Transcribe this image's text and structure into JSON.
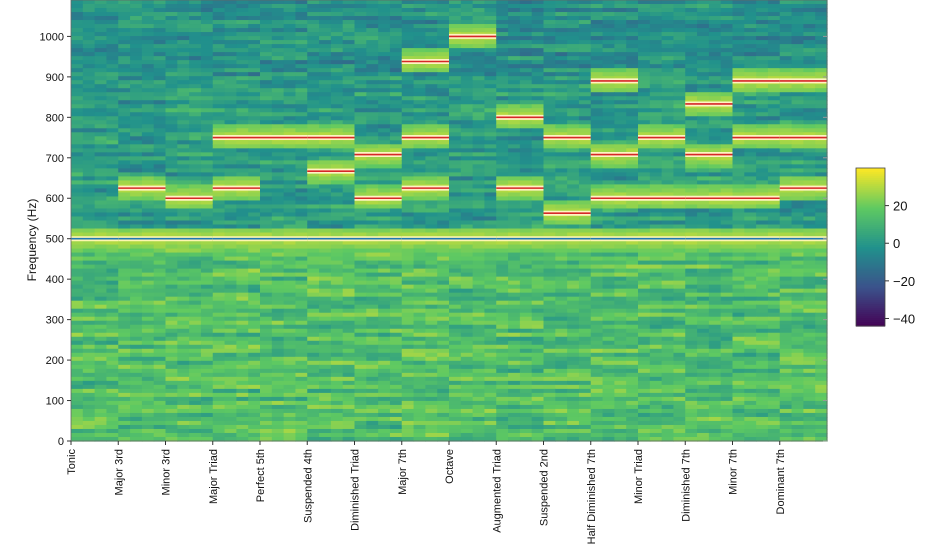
{
  "chart_data": {
    "type": "heatmap",
    "title": "",
    "xlabel": "",
    "ylabel": "Frequency (Hz)",
    "ylim": [
      0,
      1090
    ],
    "yticks": [
      0,
      100,
      200,
      300,
      400,
      500,
      600,
      700,
      800,
      900,
      1000
    ],
    "categories": [
      "Tonic",
      "Major 3rd",
      "Minor 3rd",
      "Major Triad",
      "Perfect 5th",
      "Suspended 4th",
      "Diminished Triad",
      "Major 7th",
      "Octave",
      "Augmented Triad",
      "Suspended 2nd",
      "Half Diminished 7th",
      "Minor Triad",
      "Diminished 7th",
      "Minor 7th",
      "Dominant 7th"
    ],
    "tonic_hz": 500,
    "segments": [
      {
        "name": "Tonic",
        "tones": [
          500
        ]
      },
      {
        "name": "Major 3rd",
        "tones": [
          500,
          625
        ]
      },
      {
        "name": "Minor 3rd",
        "tones": [
          500,
          600
        ]
      },
      {
        "name": "Major Triad",
        "tones": [
          500,
          625,
          750
        ]
      },
      {
        "name": "Perfect 5th",
        "tones": [
          500,
          750
        ]
      },
      {
        "name": "Suspended 4th",
        "tones": [
          500,
          667,
          750
        ]
      },
      {
        "name": "Diminished Triad",
        "tones": [
          500,
          600,
          708
        ]
      },
      {
        "name": "Major 7th",
        "tones": [
          500,
          625,
          750,
          938
        ]
      },
      {
        "name": "Octave",
        "tones": [
          500,
          1000
        ]
      },
      {
        "name": "Augmented Triad",
        "tones": [
          500,
          625,
          800
        ]
      },
      {
        "name": "Suspended 2nd",
        "tones": [
          500,
          563,
          750
        ]
      },
      {
        "name": "Half Diminished 7th",
        "tones": [
          500,
          600,
          708,
          890
        ]
      },
      {
        "name": "Minor Triad",
        "tones": [
          500,
          600,
          750
        ]
      },
      {
        "name": "Diminished 7th",
        "tones": [
          500,
          600,
          708,
          833
        ]
      },
      {
        "name": "Minor 7th",
        "tones": [
          500,
          600,
          750,
          890
        ]
      },
      {
        "name": "Dominant 7th",
        "tones": [
          500,
          625,
          750,
          890
        ]
      }
    ],
    "colorbar": {
      "range": [
        -44,
        40
      ],
      "ticks": [
        -40,
        -20,
        0,
        20
      ],
      "colormap": [
        "#440154",
        "#3b528b",
        "#21918c",
        "#5ec962",
        "#fde725"
      ]
    },
    "tone_line_color": "#d62728",
    "tonic_line_color": "#1f77b4"
  }
}
